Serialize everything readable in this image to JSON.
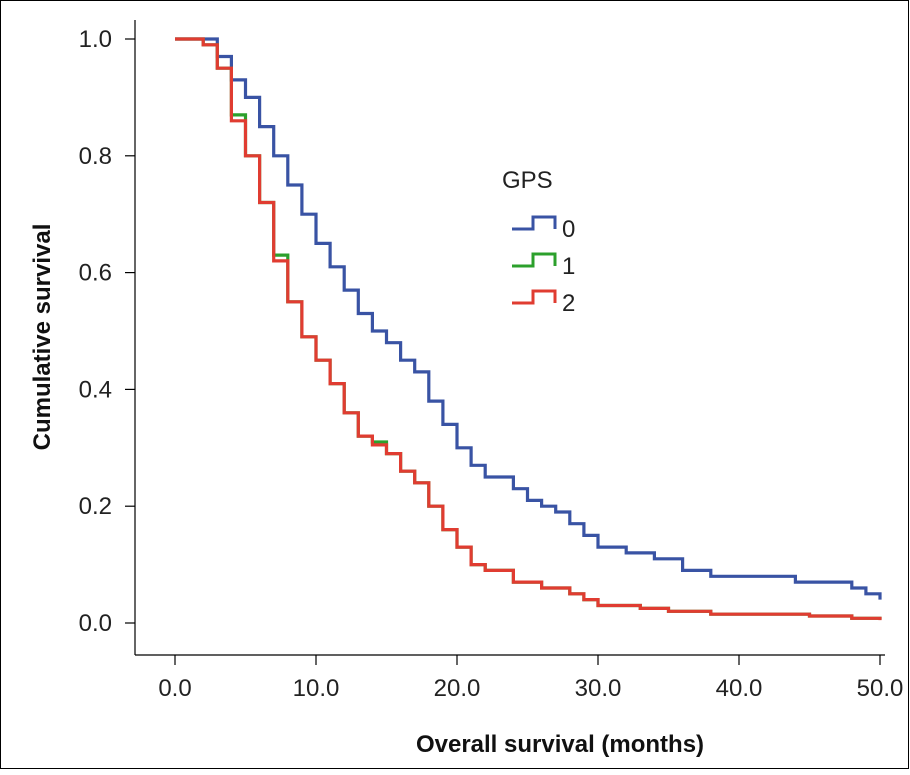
{
  "chart_data": {
    "type": "line",
    "step": true,
    "xlabel": "Overall survival (months)",
    "ylabel": "Cumulative survival",
    "xlim": [
      0,
      50
    ],
    "ylim": [
      0,
      1
    ],
    "x_ticks": [
      "0.0",
      "10.0",
      "20.0",
      "30.0",
      "40.0",
      "50.0"
    ],
    "y_ticks": [
      "0.0",
      "0.2",
      "0.4",
      "0.6",
      "0.8",
      "1.0"
    ],
    "grid": false,
    "legend": {
      "title": "GPS",
      "position": "center-right"
    },
    "series": [
      {
        "name": "0",
        "color": "#3953A4",
        "points": [
          [
            0,
            1.0
          ],
          [
            2,
            1.0
          ],
          [
            3,
            0.97
          ],
          [
            4,
            0.93
          ],
          [
            5,
            0.9
          ],
          [
            6,
            0.85
          ],
          [
            7,
            0.8
          ],
          [
            8,
            0.75
          ],
          [
            9,
            0.7
          ],
          [
            10,
            0.65
          ],
          [
            11,
            0.61
          ],
          [
            12,
            0.57
          ],
          [
            13,
            0.53
          ],
          [
            14,
            0.5
          ],
          [
            15,
            0.48
          ],
          [
            16,
            0.45
          ],
          [
            17,
            0.43
          ],
          [
            18,
            0.38
          ],
          [
            19,
            0.34
          ],
          [
            20,
            0.3
          ],
          [
            21,
            0.27
          ],
          [
            22,
            0.25
          ],
          [
            24,
            0.23
          ],
          [
            25,
            0.21
          ],
          [
            26,
            0.2
          ],
          [
            27,
            0.19
          ],
          [
            28,
            0.17
          ],
          [
            29,
            0.15
          ],
          [
            30,
            0.13
          ],
          [
            32,
            0.12
          ],
          [
            34,
            0.11
          ],
          [
            36,
            0.09
          ],
          [
            38,
            0.08
          ],
          [
            40,
            0.08
          ],
          [
            42,
            0.08
          ],
          [
            44,
            0.07
          ],
          [
            46,
            0.07
          ],
          [
            48,
            0.06
          ],
          [
            49,
            0.05
          ],
          [
            50,
            0.04
          ]
        ]
      },
      {
        "name": "1",
        "color": "#2CA02C",
        "points": [
          [
            0,
            1.0
          ],
          [
            2,
            0.99
          ],
          [
            3,
            0.95
          ],
          [
            4,
            0.87
          ],
          [
            5,
            0.8
          ],
          [
            6,
            0.72
          ],
          [
            7,
            0.63
          ],
          [
            8,
            0.55
          ],
          [
            9,
            0.49
          ],
          [
            10,
            0.45
          ],
          [
            11,
            0.41
          ],
          [
            12,
            0.36
          ],
          [
            13,
            0.32
          ],
          [
            14,
            0.31
          ],
          [
            15,
            0.29
          ],
          [
            16,
            0.26
          ],
          [
            17,
            0.24
          ],
          [
            18,
            0.2
          ],
          [
            19,
            0.16
          ],
          [
            20,
            0.13
          ],
          [
            21,
            0.1
          ],
          [
            22,
            0.09
          ],
          [
            24,
            0.07
          ],
          [
            26,
            0.06
          ],
          [
            28,
            0.05
          ],
          [
            29,
            0.04
          ],
          [
            30,
            0.03
          ],
          [
            33,
            0.025
          ],
          [
            35,
            0.02
          ],
          [
            38,
            0.015
          ],
          [
            40,
            0.015
          ],
          [
            45,
            0.012
          ],
          [
            48,
            0.008
          ],
          [
            50,
            0.006
          ]
        ]
      },
      {
        "name": "2",
        "color": "#E03C31",
        "points": [
          [
            0,
            1.0
          ],
          [
            2,
            0.99
          ],
          [
            3,
            0.95
          ],
          [
            4,
            0.86
          ],
          [
            5,
            0.8
          ],
          [
            6,
            0.72
          ],
          [
            7,
            0.62
          ],
          [
            8,
            0.55
          ],
          [
            9,
            0.49
          ],
          [
            10,
            0.45
          ],
          [
            11,
            0.41
          ],
          [
            12,
            0.36
          ],
          [
            13,
            0.32
          ],
          [
            14,
            0.305
          ],
          [
            15,
            0.29
          ],
          [
            16,
            0.26
          ],
          [
            17,
            0.24
          ],
          [
            18,
            0.2
          ],
          [
            19,
            0.16
          ],
          [
            20,
            0.13
          ],
          [
            21,
            0.1
          ],
          [
            22,
            0.09
          ],
          [
            24,
            0.07
          ],
          [
            26,
            0.06
          ],
          [
            28,
            0.05
          ],
          [
            29,
            0.04
          ],
          [
            30,
            0.03
          ],
          [
            33,
            0.025
          ],
          [
            35,
            0.02
          ],
          [
            38,
            0.015
          ],
          [
            40,
            0.015
          ],
          [
            45,
            0.012
          ],
          [
            48,
            0.008
          ],
          [
            50,
            0.005
          ]
        ]
      }
    ]
  }
}
